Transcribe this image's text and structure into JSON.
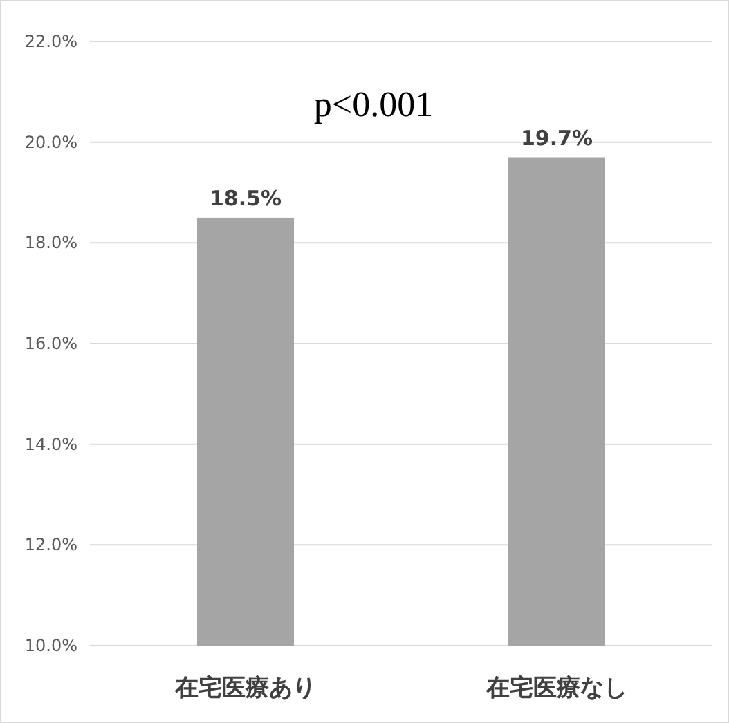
{
  "chart_data": {
    "type": "bar",
    "categories": [
      "在宅医療あり",
      "在宅医療なし"
    ],
    "values": [
      18.5,
      19.7
    ],
    "color": "#a5a5a5",
    "value_labels": [
      "18.5%",
      "19.7%"
    ],
    "ylim": [
      10,
      22
    ],
    "yticks": [
      {
        "value": 10,
        "label": "10.0%"
      },
      {
        "value": 12,
        "label": "12.0%"
      },
      {
        "value": 14,
        "label": "14.0%"
      },
      {
        "value": 16,
        "label": "16.0%"
      },
      {
        "value": 18,
        "label": "18.0%"
      },
      {
        "value": 20,
        "label": "20.0%"
      },
      {
        "value": 22,
        "label": "22.0%"
      }
    ],
    "grid": "y",
    "annotations": [
      "p<0.001"
    ]
  }
}
